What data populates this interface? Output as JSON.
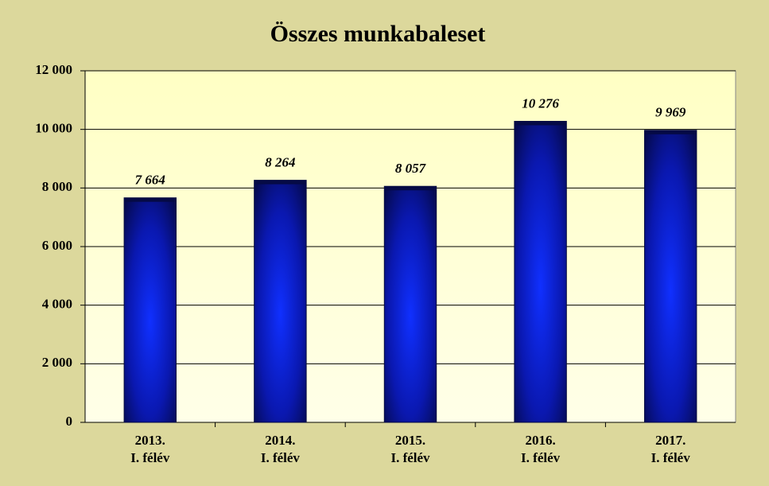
{
  "chart_data": {
    "type": "bar",
    "title": "Összes munkabaleset",
    "categories": [
      "2013.\nI. félév",
      "2014.\nI. félév",
      "2015.\nI. félév",
      "2016.\nI. félév",
      "2017.\nI. félév"
    ],
    "values": [
      7664,
      8264,
      8057,
      10276,
      9969
    ],
    "value_labels": [
      "7 664",
      "8 264",
      "8 057",
      "10 276",
      "9 969"
    ],
    "color": "#0a1ee0",
    "ylim": [
      0,
      12000
    ],
    "yticks": [
      0,
      {
        "value": 2000,
        "label": "2 000"
      },
      {
        "value": 4000,
        "label": "4 000"
      },
      {
        "value": 6000,
        "label": "6 000"
      },
      {
        "value": 8000,
        "label": "8 000"
      },
      {
        "value": 10000,
        "label": "10 000"
      },
      {
        "value": 12000,
        "label": "12 000"
      }
    ],
    "grid": true
  }
}
